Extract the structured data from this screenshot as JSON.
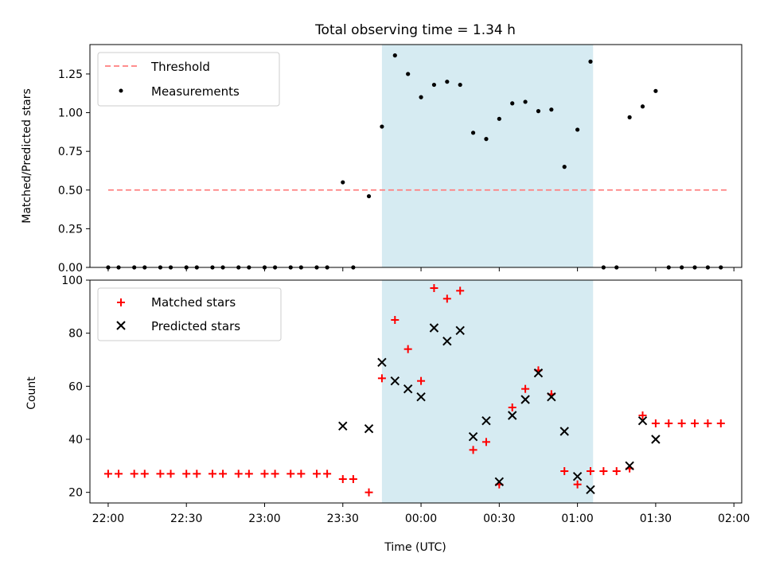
{
  "title": "Total observing time = 1.34 h",
  "chart_data": [
    {
      "type": "scatter",
      "ylabel": "Matched/Predicted stars",
      "ylim": [
        0,
        1.44
      ],
      "xlim": [
        "21:53",
        "02:03"
      ],
      "yticks": [
        "0.00",
        "0.25",
        "0.50",
        "0.75",
        "1.00",
        "1.25"
      ],
      "highlight_span": {
        "start": "23:45",
        "end": "01:06"
      },
      "threshold": {
        "name": "Threshold",
        "value": 0.5,
        "x_start": "22:00",
        "x_end": "01:58",
        "color": "#ff7f7f"
      },
      "legend": [
        "Threshold",
        "Measurements"
      ],
      "legend_position": "upper-left",
      "series": [
        {
          "name": "Measurements",
          "color": "#000000",
          "x": [
            "22:00",
            "22:04",
            "22:10",
            "22:14",
            "22:20",
            "22:24",
            "22:30",
            "22:34",
            "22:40",
            "22:44",
            "22:50",
            "22:54",
            "23:00",
            "23:04",
            "23:10",
            "23:14",
            "23:20",
            "23:24",
            "23:30",
            "23:34",
            "23:40",
            "23:45",
            "23:50",
            "23:55",
            "24:00",
            "24:05",
            "24:10",
            "24:15",
            "24:20",
            "24:25",
            "24:30",
            "24:35",
            "24:40",
            "24:45",
            "24:50",
            "24:55",
            "25:00",
            "25:05",
            "25:10",
            "25:15",
            "25:20",
            "25:25",
            "25:30",
            "25:35",
            "25:40",
            "25:45",
            "25:50",
            "25:55"
          ],
          "y": [
            0,
            0,
            0,
            0,
            0,
            0,
            0,
            0,
            0,
            0,
            0,
            0,
            0,
            0,
            0,
            0,
            0,
            0,
            0.55,
            0,
            0.46,
            0.91,
            1.37,
            1.25,
            1.1,
            1.18,
            1.2,
            1.18,
            0.87,
            0.83,
            0.96,
            1.06,
            1.07,
            1.01,
            1.02,
            0.65,
            0.89,
            1.33,
            0,
            0,
            0.97,
            1.04,
            1.14,
            0,
            0,
            0,
            0,
            0
          ]
        }
      ]
    },
    {
      "type": "scatter",
      "xlabel": "Time (UTC)",
      "ylabel": "Count",
      "ylim": [
        16,
        100
      ],
      "xlim": [
        "21:53",
        "02:03"
      ],
      "yticks": [
        "20",
        "40",
        "60",
        "80",
        "100"
      ],
      "xticks": [
        "22:00",
        "22:30",
        "23:00",
        "23:30",
        "00:00",
        "00:30",
        "01:00",
        "01:30",
        "02:00"
      ],
      "highlight_span": {
        "start": "23:45",
        "end": "01:06"
      },
      "legend": [
        "Matched stars",
        "Predicted stars"
      ],
      "legend_position": "upper-left",
      "series": [
        {
          "name": "Matched stars",
          "marker": "plus",
          "color": "#ff0000",
          "x": [
            "22:00",
            "22:04",
            "22:10",
            "22:14",
            "22:20",
            "22:24",
            "22:30",
            "22:34",
            "22:40",
            "22:44",
            "22:50",
            "22:54",
            "23:00",
            "23:04",
            "23:10",
            "23:14",
            "23:20",
            "23:24",
            "23:30",
            "23:34",
            "23:40",
            "23:45",
            "23:50",
            "23:55",
            "24:00",
            "24:05",
            "24:10",
            "24:15",
            "24:20",
            "24:25",
            "24:30",
            "24:35",
            "24:40",
            "24:45",
            "24:50",
            "24:55",
            "25:00",
            "25:05",
            "25:10",
            "25:15",
            "25:20",
            "25:25",
            "25:30",
            "25:35",
            "25:40",
            "25:45",
            "25:50",
            "25:55"
          ],
          "y": [
            27,
            27,
            27,
            27,
            27,
            27,
            27,
            27,
            27,
            27,
            27,
            27,
            27,
            27,
            27,
            27,
            27,
            27,
            25,
            25,
            20,
            63,
            85,
            74,
            62,
            97,
            93,
            96,
            36,
            39,
            23,
            52,
            59,
            66,
            57,
            28,
            23,
            28,
            28,
            28,
            29,
            49,
            46,
            46,
            46,
            46,
            46,
            46
          ]
        },
        {
          "name": "Predicted stars",
          "marker": "x",
          "color": "#000000",
          "x": [
            "23:30",
            "23:40",
            "23:45",
            "23:50",
            "23:55",
            "24:00",
            "24:05",
            "24:10",
            "24:15",
            "24:20",
            "24:25",
            "24:30",
            "24:35",
            "24:40",
            "24:45",
            "24:50",
            "24:55",
            "25:00",
            "25:05",
            "25:20",
            "25:25",
            "25:30"
          ],
          "y": [
            45,
            44,
            69,
            62,
            59,
            56,
            82,
            77,
            81,
            41,
            47,
            24,
            49,
            55,
            65,
            56,
            43,
            26,
            21,
            30,
            47,
            40
          ]
        }
      ]
    }
  ]
}
